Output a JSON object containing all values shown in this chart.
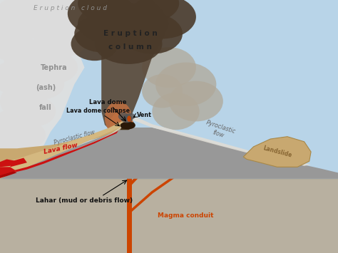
{
  "bg_sky_color": "#b8d4e8",
  "tephra_cloud_color": "#d8d8d8",
  "eruption_column_dark": "#5a4a3a",
  "eruption_column_mid": "#7a6a5a",
  "eruption_orange": "#c87040",
  "eruption_gray_puff": "#b0a898",
  "volcano_left_color": "#c8a870",
  "volcano_left_dark": "#b89860",
  "volcano_right_color": "#989898",
  "pyroclastic_band_color": "#d8d0b8",
  "lava_flow_color": "#cc1111",
  "lava_flow_dark": "#880808",
  "magma_conduit_color": "#cc4400",
  "landslide_color": "#c8a870",
  "landslide_edge": "#a08050",
  "ground_color": "#c0c0b8",
  "underground_color": "#b0a898",
  "labels": {
    "eruption_cloud": "E r u p t i o n   c l o u d",
    "eruption_column_line1": "E r u p t i o n",
    "eruption_column_line2": "c o l u m n",
    "tephra": "Tephra",
    "ash": "(ash)",
    "fall": "fall",
    "lava_dome": "Lava dome",
    "lava_dome_collapse": "Lava dome collapse",
    "vent": "Vent",
    "pyroclastic_flow_left": "Pyroclastic flow",
    "pyroclastic_flow_right": "Pyroclastic\nflow",
    "lava_flow": "Lava flow",
    "lahar": "Lahar (mud or debris flow)",
    "landslide": "Landslide",
    "magma_conduit": "Magma conduit"
  },
  "label_colors": {
    "eruption_cloud": "#909090",
    "eruption_column": "#222222",
    "tephra": "#909090",
    "lava_dome": "#111111",
    "lava_dome_collapse": "#111111",
    "vent": "#111111",
    "pyroclastic_flow_left": "#666666",
    "pyroclastic_flow_right": "#666666",
    "lava_flow": "#cc1111",
    "lahar": "#111111",
    "landslide": "#886633",
    "magma_conduit": "#cc4400"
  }
}
